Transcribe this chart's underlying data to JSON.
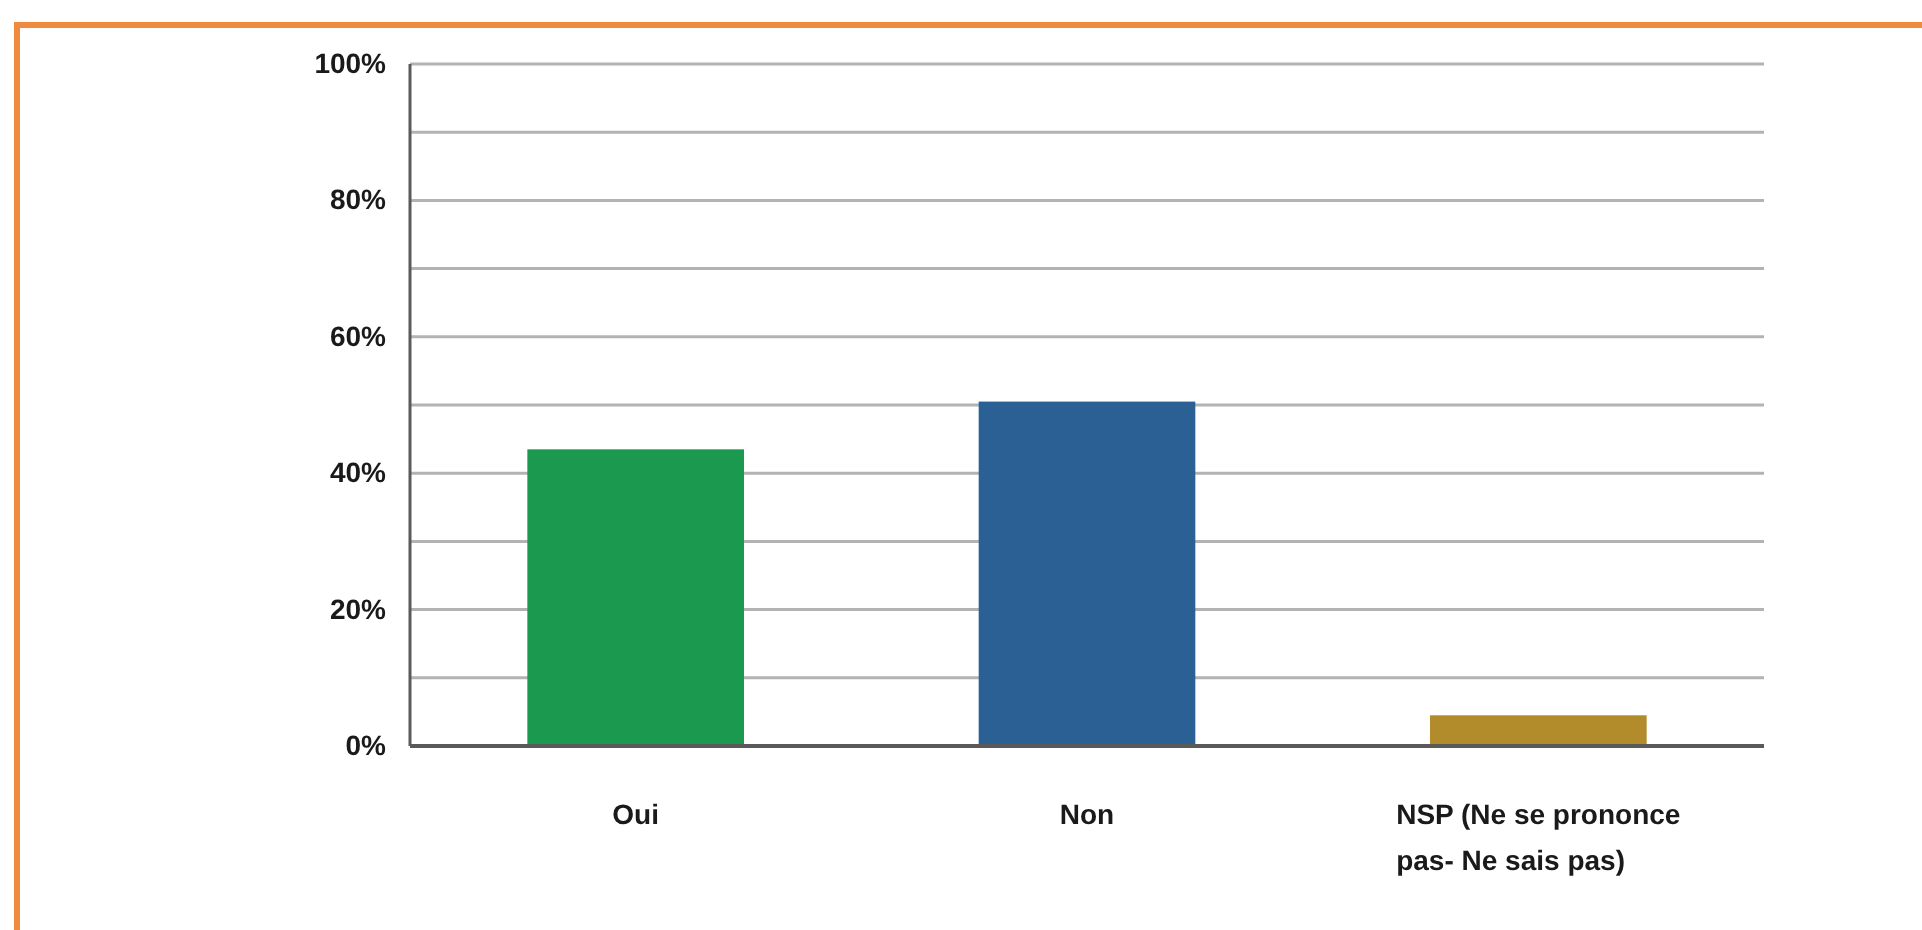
{
  "chart_data": {
    "type": "bar",
    "categories": [
      "Oui",
      "Non",
      "NSP (Ne se prononce pas- Ne sais pas)"
    ],
    "values": [
      43.5,
      50.5,
      4.5
    ],
    "colors": [
      "#1b9a4f",
      "#2b6094",
      "#b28b2b"
    ],
    "ylim": [
      0,
      100
    ],
    "yticks": [
      {
        "value": 0,
        "label": "0%"
      },
      {
        "value": 10,
        "label": null
      },
      {
        "value": 20,
        "label": "20%"
      },
      {
        "value": 30,
        "label": null
      },
      {
        "value": 40,
        "label": "40%"
      },
      {
        "value": 50,
        "label": null
      },
      {
        "value": 60,
        "label": "60%"
      },
      {
        "value": 70,
        "label": null
      },
      {
        "value": 80,
        "label": "80%"
      },
      {
        "value": 90,
        "label": null
      },
      {
        "value": 100,
        "label": "100%"
      }
    ],
    "grid": "y"
  }
}
